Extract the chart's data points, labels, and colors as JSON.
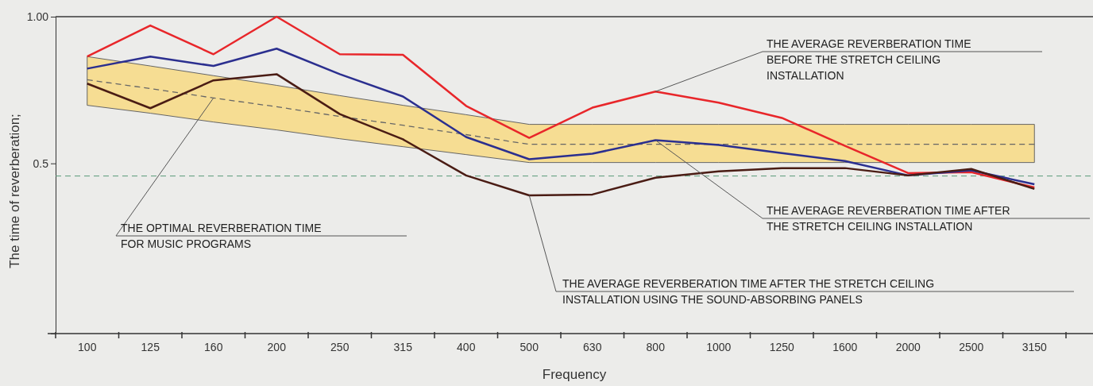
{
  "chart_data": {
    "type": "line",
    "xlabel": "Frequency",
    "ylabel": "The time of reverberation;",
    "categories": [
      "100",
      "125",
      "160",
      "200",
      "250",
      "315",
      "400",
      "500",
      "630",
      "800",
      "1000",
      "1250",
      "1600",
      "2000",
      "2500",
      "3150"
    ],
    "ylim": [
      -0.08,
      1.0
    ],
    "yticks": [
      {
        "value": 0.5,
        "label": "0.5"
      },
      {
        "value": 1.0,
        "label": "1.00"
      }
    ],
    "grid": false,
    "marker": "none",
    "series": [
      {
        "color": "#666666",
        "line_style": "dashed",
        "values": [
          0.785,
          0.755,
          0.723,
          0.693,
          0.66,
          0.63,
          0.598,
          0.565,
          0.565,
          0.565,
          0.565,
          0.565,
          0.565,
          0.565,
          0.565,
          0.565
        ],
        "lower": [
          0.698,
          0.671,
          0.641,
          0.614,
          0.584,
          0.557,
          0.53,
          0.503,
          0.503,
          0.503,
          0.503,
          0.503,
          0.503,
          0.503,
          0.503,
          0.503
        ],
        "upper": [
          0.864,
          0.832,
          0.799,
          0.766,
          0.731,
          0.698,
          0.666,
          0.633,
          0.633,
          0.633,
          0.633,
          0.633,
          0.633,
          0.633,
          0.633,
          0.633
        ]
      },
      {
        "color": "#e8262a",
        "line_style": "solid",
        "values": [
          0.864,
          0.97,
          0.872,
          1.0,
          0.872,
          0.87,
          0.696,
          0.587,
          0.69,
          0.745,
          0.707,
          0.655,
          0.56,
          0.467,
          0.47,
          0.418
        ]
      },
      {
        "color": "#2b2f8f",
        "line_style": "solid",
        "values": [
          0.823,
          0.864,
          0.832,
          0.891,
          0.804,
          0.728,
          0.59,
          0.514,
          0.533,
          0.579,
          0.563,
          0.535,
          0.508,
          0.459,
          0.476,
          0.429
        ]
      },
      {
        "color": "#4a1c14",
        "line_style": "solid",
        "values": [
          0.772,
          0.688,
          0.783,
          0.804,
          0.668,
          0.582,
          0.459,
          0.391,
          0.394,
          0.451,
          0.473,
          0.484,
          0.484,
          0.459,
          0.481,
          0.413
        ]
      }
    ],
    "ref_lines": [
      {
        "axis": "y",
        "value": 0.457,
        "color": "#5a9a7a",
        "line_style": "dashed"
      }
    ],
    "annotations": [
      {
        "text": "THE AVERAGE REVERBERATION TIME\nBEFORE THE STRETCH CEILING\nINSTALLATION",
        "x": "800",
        "y": 0.745
      },
      {
        "text": "THE AVERAGE REVERBERATION TIME AFTER\nTHE STRETCH CEILING INSTALLATION",
        "x": "800",
        "y": 0.579
      },
      {
        "text": "THE AVERAGE REVERBERATION TIME AFTER THE STRETCH CEILING\nINSTALLATION USING THE SOUND-ABSORBING PANELS",
        "x": "500",
        "y": 0.391
      },
      {
        "text": "THE OPTIMAL REVERBERATION TIME\nFOR MUSIC PROGRAMS",
        "x": "160",
        "y": 0.723
      }
    ]
  }
}
